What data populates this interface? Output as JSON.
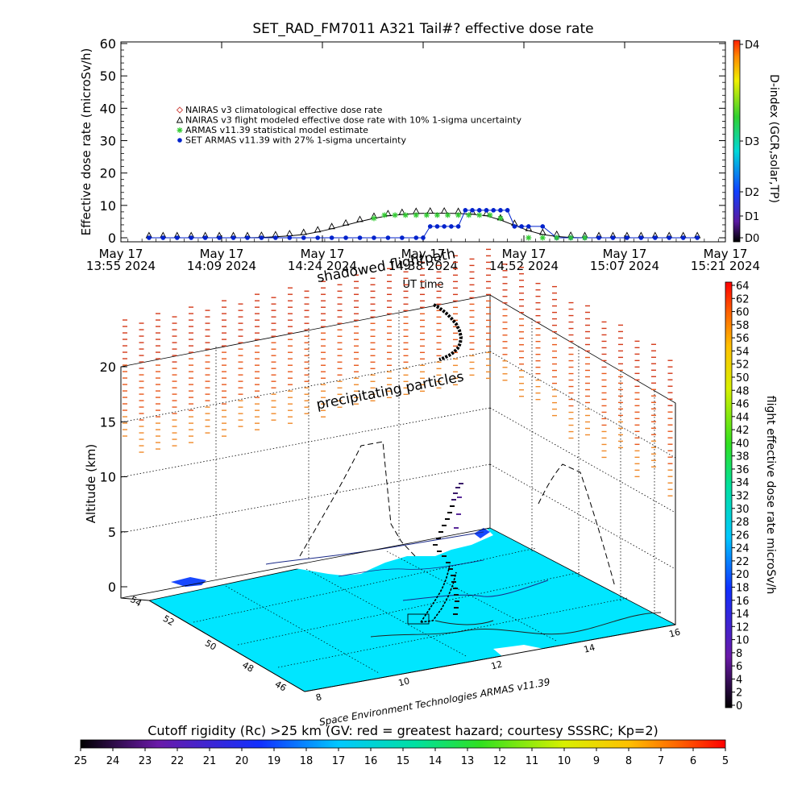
{
  "chart_data": [
    {
      "type": "line",
      "title": "SET_RAD_FM7011  A321 Tail#? effective dose rate",
      "xlabel": "UT time",
      "ylabel": "Effective dose rate (microSv/h)",
      "ylim": [
        0,
        60
      ],
      "y_ticks": [
        "0",
        "10",
        "20",
        "30",
        "40",
        "50",
        "60"
      ],
      "x_ticks": [
        {
          "line1": "May 17",
          "line2": "13:55 2024"
        },
        {
          "line1": "May 17",
          "line2": "14:09 2024"
        },
        {
          "line1": "May 17",
          "line2": "14:24 2024"
        },
        {
          "line1": "May 17",
          "line2": "14:38 2024"
        },
        {
          "line1": "May 17",
          "line2": "14:52 2024"
        },
        {
          "line1": "May 17",
          "line2": "15:07 2024"
        },
        {
          "line1": "May 17",
          "line2": "15:21 2024"
        }
      ],
      "xlim": [
        "13:55",
        "15:21"
      ],
      "legend": [
        {
          "label": "NAIRAS v3 climatological effective dose rate",
          "marker": "diamond",
          "color": "#d0504a"
        },
        {
          "label": "NAIRAS v3 flight modeled effective dose rate with 10% 1-sigma uncertainty",
          "marker": "triangle",
          "color": "#000000"
        },
        {
          "label": "ARMAS v11.39 statistical model estimate",
          "marker": "asterisk",
          "color": "#33cc33"
        },
        {
          "label": "SET ARMAS v11.39 with 27% 1-sigma uncertainty",
          "marker": "dot",
          "color": "#0022cc"
        }
      ],
      "legend_position": "upper-left",
      "series": [
        {
          "name": "NAIRAS v3 flight modeled effective dose rate with 10% 1-sigma uncertainty",
          "x_minutes": [
            4,
            6,
            8,
            10,
            12,
            14,
            16,
            18,
            20,
            22,
            24,
            26,
            28,
            30,
            32,
            34,
            36,
            38,
            40,
            42,
            44,
            46,
            48,
            50,
            52,
            54,
            56,
            58,
            60,
            62,
            64,
            66,
            68,
            70,
            72,
            74,
            76,
            78,
            80,
            82
          ],
          "values": [
            0,
            0,
            0,
            0,
            0,
            0,
            0,
            0,
            0.1,
            0.3,
            0.6,
            1,
            1.8,
            2.8,
            3.9,
            5,
            6,
            6.8,
            7.2,
            7.5,
            7.6,
            7.6,
            7.5,
            7.3,
            6.8,
            5.5,
            3.8,
            2.2,
            1,
            0.4,
            0.1,
            0,
            0,
            0,
            0,
            0,
            0,
            0,
            0,
            0
          ]
        },
        {
          "name": "ARMAS v11.39 statistical model estimate",
          "x_minutes": [
            36,
            37.5,
            39,
            40.5,
            42,
            43.5,
            45,
            46.5,
            48,
            49.5,
            51,
            52.5,
            54
          ],
          "values": [
            6,
            7,
            7,
            7,
            7,
            7,
            7,
            7,
            7,
            7,
            7,
            7,
            6
          ]
        },
        {
          "name": "SET ARMAS v11.39 with 27% 1-sigma uncertainty",
          "x_minutes": [
            4,
            6,
            8,
            10,
            12,
            14,
            16,
            18,
            20,
            22,
            24,
            26,
            28,
            30,
            32,
            34,
            36,
            38,
            40,
            42,
            43,
            44,
            45,
            46,
            47,
            48,
            49,
            50,
            51,
            52,
            53,
            54,
            55,
            56,
            57,
            58,
            60,
            62,
            64,
            66,
            68,
            70,
            72,
            74,
            76,
            78,
            80,
            82
          ],
          "values": [
            0,
            0,
            0,
            0,
            0,
            0,
            0,
            0,
            0,
            0,
            0,
            0,
            0,
            0,
            0,
            0,
            0,
            0,
            0,
            0,
            0,
            3.5,
            3.5,
            3.5,
            3.5,
            3.5,
            8.5,
            8.5,
            8.5,
            8.5,
            8.5,
            8.5,
            8.5,
            3.5,
            3.5,
            3.5,
            3.5,
            0,
            0,
            0,
            0,
            0,
            0,
            0,
            0,
            0,
            0,
            0
          ]
        }
      ],
      "right_axis": {
        "label": "D-index (GCR,solar,TP)",
        "ticks": [
          "D0",
          "D1",
          "D2",
          "D3",
          "D4"
        ]
      }
    },
    {
      "type": "3d-surface",
      "ylabel": "Altitude (km)",
      "z_ticks": [
        "0",
        "5",
        "10",
        "15",
        "20"
      ],
      "zlim": [
        0,
        24
      ],
      "lon_ticks": [
        "8",
        "10",
        "12",
        "14",
        "16"
      ],
      "lat_ticks": [
        "46",
        "48",
        "50",
        "52",
        "54"
      ],
      "annotations": [
        "shadowed flightpath",
        "precipitating particles",
        "Space Environment Technologies ARMAS v11.39"
      ],
      "dose_colorbar": {
        "label": "flight effective dose rate microSv/h",
        "ticks": [
          "0",
          "2",
          "4",
          "6",
          "8",
          "10",
          "12",
          "14",
          "16",
          "18",
          "20",
          "22",
          "24",
          "26",
          "28",
          "30",
          "32",
          "34",
          "36",
          "38",
          "40",
          "42",
          "44",
          "46",
          "48",
          "50",
          "52",
          "54",
          "56",
          "58",
          "60",
          "62",
          "64"
        ]
      },
      "rigidity_colorbar": {
        "label": "Cutoff rigidity (Rc) >25 km (GV: red = greatest hazard; courtesy SSSRC; Kp=2)",
        "ticks": [
          "25",
          "24",
          "23",
          "22",
          "21",
          "20",
          "19",
          "18",
          "17",
          "16",
          "15",
          "14",
          "13",
          "12",
          "11",
          "10",
          "9",
          "8",
          "7",
          "6",
          "5"
        ]
      }
    }
  ]
}
